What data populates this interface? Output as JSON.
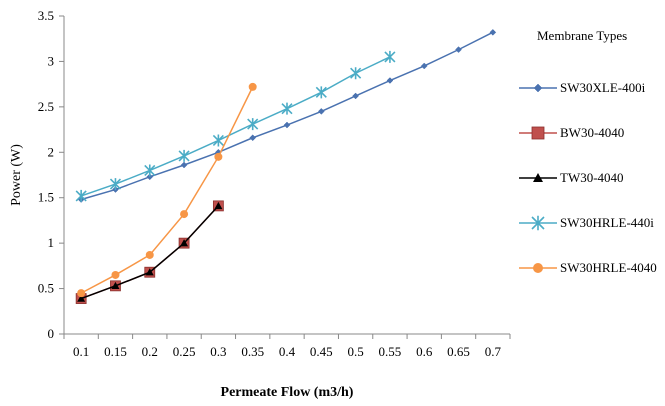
{
  "chart_data": {
    "type": "line",
    "title": "",
    "xlabel": "Permeate Flow (m3/h)",
    "ylabel": "Power (W)",
    "x_ticks": [
      "0.1",
      "0.15",
      "0.2",
      "0.25",
      "0.3",
      "0.35",
      "0.4",
      "0.45",
      "0.5",
      "0.55",
      "0.6",
      "0.65",
      "0.7"
    ],
    "y_ticks": [
      "0",
      "0.5",
      "1",
      "1.5",
      "2",
      "2.5",
      "3",
      "3.5"
    ],
    "ylim": [
      0,
      3.5
    ],
    "grid": false,
    "legend": {
      "title": "Membrane Types",
      "position": "right"
    },
    "series": [
      {
        "name": "SW30XLE-400i",
        "color": "#4a72b0",
        "marker": "diamond",
        "x": [
          0.1,
          0.15,
          0.2,
          0.25,
          0.3,
          0.35,
          0.4,
          0.45,
          0.5,
          0.55,
          0.6,
          0.65,
          0.7
        ],
        "values": [
          1.48,
          1.59,
          1.73,
          1.86,
          2.0,
          2.16,
          2.3,
          2.45,
          2.62,
          2.79,
          2.95,
          3.13,
          3.32
        ]
      },
      {
        "name": "BW30-4040",
        "color": "#c0504d",
        "marker": "square",
        "x": [
          0.1,
          0.15,
          0.2,
          0.25,
          0.3
        ],
        "values": [
          0.39,
          0.53,
          0.68,
          1.0,
          1.41
        ]
      },
      {
        "name": "TW30-4040",
        "color": "#000000",
        "marker": "triangle",
        "x": [
          0.1,
          0.15,
          0.2,
          0.25,
          0.3
        ],
        "values": [
          0.39,
          0.53,
          0.68,
          1.0,
          1.41
        ]
      },
      {
        "name": "SW30HRLE-440i",
        "color": "#4bacc6",
        "marker": "star",
        "x": [
          0.1,
          0.15,
          0.2,
          0.25,
          0.3,
          0.35,
          0.4,
          0.45,
          0.5,
          0.55
        ],
        "values": [
          1.52,
          1.65,
          1.8,
          1.96,
          2.13,
          2.31,
          2.48,
          2.66,
          2.87,
          3.05
        ]
      },
      {
        "name": "SW30HRLE-4040",
        "color": "#f79646",
        "marker": "circle",
        "x": [
          0.1,
          0.15,
          0.2,
          0.25,
          0.3,
          0.35
        ],
        "values": [
          0.45,
          0.65,
          0.87,
          1.32,
          1.95,
          2.72
        ]
      }
    ]
  }
}
